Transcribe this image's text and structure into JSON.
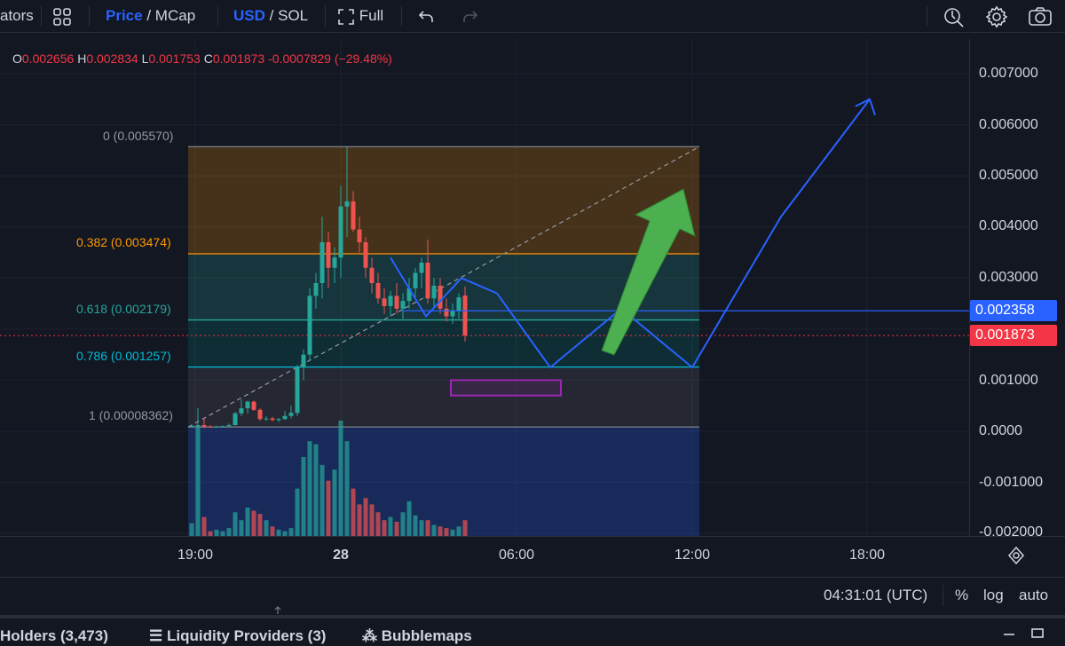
{
  "toolbar": {
    "indicators_label": "ators",
    "price_label": "Price",
    "slash1": "/",
    "mcap_label": "MCap",
    "usd_label": "USD",
    "slash2": "/",
    "sol_label": "SOL",
    "full_label": "Full"
  },
  "ohlc": {
    "o_key": "O",
    "o_val": "0.002656",
    "h_key": "H",
    "h_val": "0.002834",
    "l_key": "L",
    "l_val": "0.001753",
    "c_key": "C",
    "c_val": "0.001873",
    "change": "-0.0007829 (−29.48%)"
  },
  "fib": {
    "level_0": "0 (0.005570)",
    "level_382": "0.382 (0.003474)",
    "level_618": "0.618 (0.002179)",
    "level_786": "0.786 (0.001257)",
    "level_1": "1 (0.00008362)"
  },
  "price_axis": {
    "ticks": [
      "0.007000",
      "0.006000",
      "0.005000",
      "0.004000",
      "0.003000",
      "0.001000",
      "0.0000",
      "-0.001000",
      "-0.002000"
    ],
    "line_tag": "0.002358",
    "last_tag": "0.001873"
  },
  "time_axis": {
    "ticks": [
      "19:00",
      "28",
      "06:00",
      "12:00",
      "18:00"
    ]
  },
  "bottom": {
    "clock": "04:31:01 (UTC)",
    "percent": "%",
    "log": "log",
    "auto": "auto"
  },
  "tabs": {
    "holders": "Holders (3,473)",
    "liquidity": "Liquidity Providers (3)",
    "bubblemaps": "Bubblemaps"
  },
  "colors": {
    "up": "#26a69a",
    "down": "#ef5350",
    "accent": "#2962ff",
    "green_arrow": "#4caf50",
    "purple_box": "#9c27b0"
  },
  "chart_data": {
    "type": "candlestick",
    "candles": [
      {
        "o": 9e-05,
        "h": 0.00012,
        "l": 7e-05,
        "c": 0.00011
      },
      {
        "o": 0.00011,
        "h": 0.00045,
        "l": 8e-05,
        "c": 0.00012
      },
      {
        "o": 0.00012,
        "h": 0.00025,
        "l": 6e-05,
        "c": 9e-05
      },
      {
        "o": 9e-05,
        "h": 0.00012,
        "l": 7e-05,
        "c": 8e-05
      },
      {
        "o": 8e-05,
        "h": 0.00011,
        "l": 7e-05,
        "c": 9e-05
      },
      {
        "o": 9e-05,
        "h": 0.00011,
        "l": 8e-05,
        "c": 0.0001
      },
      {
        "o": 0.0001,
        "h": 0.00015,
        "l": 9e-05,
        "c": 0.00012
      },
      {
        "o": 0.00012,
        "h": 0.00038,
        "l": 0.00012,
        "c": 0.00035
      },
      {
        "o": 0.00035,
        "h": 0.00062,
        "l": 0.0003,
        "c": 0.00045
      },
      {
        "o": 0.00045,
        "h": 0.0006,
        "l": 0.00035,
        "c": 0.00058
      },
      {
        "o": 0.00058,
        "h": 0.0006,
        "l": 0.0004,
        "c": 0.00042
      },
      {
        "o": 0.00042,
        "h": 0.00045,
        "l": 0.0002,
        "c": 0.00024
      },
      {
        "o": 0.00024,
        "h": 0.0003,
        "l": 0.0002,
        "c": 0.00025
      },
      {
        "o": 0.00025,
        "h": 0.00028,
        "l": 0.0002,
        "c": 0.00022
      },
      {
        "o": 0.00022,
        "h": 0.00026,
        "l": 0.00018,
        "c": 0.00024
      },
      {
        "o": 0.00024,
        "h": 0.0004,
        "l": 0.00022,
        "c": 0.0003
      },
      {
        "o": 0.0003,
        "h": 0.0005,
        "l": 0.00025,
        "c": 0.00036
      },
      {
        "o": 0.00036,
        "h": 0.0013,
        "l": 0.0003,
        "c": 0.00125
      },
      {
        "o": 0.00125,
        "h": 0.0016,
        "l": 0.001,
        "c": 0.0015
      },
      {
        "o": 0.0015,
        "h": 0.0028,
        "l": 0.0014,
        "c": 0.00265
      },
      {
        "o": 0.00265,
        "h": 0.0031,
        "l": 0.0024,
        "c": 0.0029
      },
      {
        "o": 0.0029,
        "h": 0.0042,
        "l": 0.0026,
        "c": 0.0037
      },
      {
        "o": 0.0037,
        "h": 0.0039,
        "l": 0.0028,
        "c": 0.0032
      },
      {
        "o": 0.0032,
        "h": 0.0036,
        "l": 0.0029,
        "c": 0.0034
      },
      {
        "o": 0.0034,
        "h": 0.0048,
        "l": 0.003,
        "c": 0.0044
      },
      {
        "o": 0.0044,
        "h": 0.00557,
        "l": 0.0038,
        "c": 0.0045
      },
      {
        "o": 0.0045,
        "h": 0.0047,
        "l": 0.0039,
        "c": 0.00395
      },
      {
        "o": 0.00395,
        "h": 0.0042,
        "l": 0.0035,
        "c": 0.0037
      },
      {
        "o": 0.0037,
        "h": 0.0038,
        "l": 0.003,
        "c": 0.0032
      },
      {
        "o": 0.0032,
        "h": 0.0034,
        "l": 0.0027,
        "c": 0.0029
      },
      {
        "o": 0.0029,
        "h": 0.0031,
        "l": 0.0025,
        "c": 0.0026
      },
      {
        "o": 0.0026,
        "h": 0.0028,
        "l": 0.0023,
        "c": 0.00245
      },
      {
        "o": 0.00245,
        "h": 0.00275,
        "l": 0.00225,
        "c": 0.00265
      },
      {
        "o": 0.00265,
        "h": 0.0029,
        "l": 0.0023,
        "c": 0.0024
      },
      {
        "o": 0.0024,
        "h": 0.0027,
        "l": 0.0022,
        "c": 0.00255
      },
      {
        "o": 0.00255,
        "h": 0.003,
        "l": 0.0024,
        "c": 0.0028
      },
      {
        "o": 0.0028,
        "h": 0.0032,
        "l": 0.0026,
        "c": 0.0031
      },
      {
        "o": 0.0031,
        "h": 0.0034,
        "l": 0.0028,
        "c": 0.0033
      },
      {
        "o": 0.0033,
        "h": 0.00375,
        "l": 0.0025,
        "c": 0.0026
      },
      {
        "o": 0.0026,
        "h": 0.003,
        "l": 0.0024,
        "c": 0.00285
      },
      {
        "o": 0.00285,
        "h": 0.003,
        "l": 0.0023,
        "c": 0.0024
      },
      {
        "o": 0.0024,
        "h": 0.0026,
        "l": 0.00215,
        "c": 0.00225
      },
      {
        "o": 0.00225,
        "h": 0.0025,
        "l": 0.0021,
        "c": 0.00235
      },
      {
        "o": 0.00235,
        "h": 0.0027,
        "l": 0.0022,
        "c": 0.00262
      },
      {
        "o": 0.002656,
        "h": 0.002834,
        "l": 0.001753,
        "c": 0.001873
      }
    ],
    "volumes": [
      0.8,
      7.0,
      1.2,
      0.3,
      0.4,
      0.3,
      0.5,
      1.5,
      1.0,
      1.8,
      1.6,
      1.4,
      1.0,
      0.6,
      0.4,
      0.3,
      0.5,
      3.0,
      5.0,
      6.0,
      5.8,
      4.5,
      3.5,
      4.2,
      7.3,
      6.0,
      3.0,
      2.0,
      2.4,
      2.0,
      1.5,
      1.0,
      1.2,
      0.9,
      1.5,
      2.2,
      1.3,
      1.0,
      1.0,
      0.7,
      0.6,
      0.5,
      0.4,
      0.6,
      1.0
    ],
    "fib_levels": [
      {
        "ratio": 0,
        "price": 0.00557
      },
      {
        "ratio": 0.382,
        "price": 0.003474
      },
      {
        "ratio": 0.618,
        "price": 0.002179
      },
      {
        "ratio": 0.786,
        "price": 0.001257
      },
      {
        "ratio": 1,
        "price": 8.362e-05
      }
    ],
    "horizontal_line": 0.002358,
    "last_price": 0.001873,
    "projection_path": [
      {
        "t": 0.0,
        "p": 0.0034
      },
      {
        "t": 1.0,
        "p": 0.00225
      },
      {
        "t": 2.0,
        "p": 0.003
      },
      {
        "t": 3.0,
        "p": 0.0027
      },
      {
        "t": 4.5,
        "p": 0.00125
      },
      {
        "t": 6.5,
        "p": 0.0024
      },
      {
        "t": 8.5,
        "p": 0.00125
      },
      {
        "t": 11.0,
        "p": 0.0042
      },
      {
        "t": 13.5,
        "p": 0.0065
      }
    ],
    "ylim": [
      -0.002,
      0.0073
    ]
  }
}
